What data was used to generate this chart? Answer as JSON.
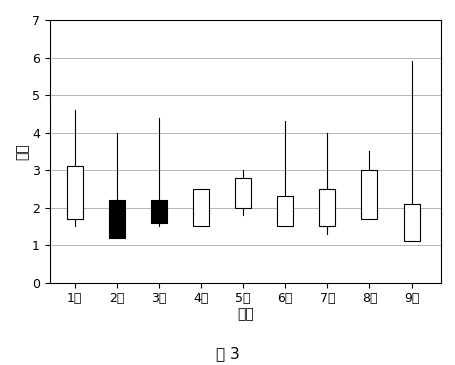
{
  "title": "图 3",
  "xlabel": "时间",
  "ylabel": "震级",
  "ylim": [
    0,
    7
  ],
  "yticks": [
    0,
    1,
    2,
    3,
    4,
    5,
    6,
    7
  ],
  "months": [
    "1月",
    "2月",
    "3月",
    "4月",
    "5月",
    "6月",
    "7月",
    "8月",
    "9月"
  ],
  "candles": [
    {
      "x": 1,
      "open": 3.1,
      "close": 1.7,
      "high": 4.6,
      "low": 1.5,
      "black": false
    },
    {
      "x": 2,
      "open": 1.2,
      "close": 2.2,
      "high": 4.0,
      "low": 1.2,
      "black": true
    },
    {
      "x": 3,
      "open": 1.6,
      "close": 2.2,
      "high": 4.4,
      "low": 1.5,
      "black": true
    },
    {
      "x": 4,
      "open": 1.5,
      "close": 2.5,
      "high": 2.5,
      "low": 1.5,
      "black": false
    },
    {
      "x": 5,
      "open": 2.0,
      "close": 2.8,
      "high": 3.0,
      "low": 1.8,
      "black": false
    },
    {
      "x": 6,
      "open": 1.5,
      "close": 2.3,
      "high": 4.3,
      "low": 1.5,
      "black": false
    },
    {
      "x": 7,
      "open": 1.5,
      "close": 2.5,
      "high": 4.0,
      "low": 1.3,
      "black": false
    },
    {
      "x": 8,
      "open": 1.7,
      "close": 3.0,
      "high": 3.5,
      "low": 1.7,
      "black": false
    },
    {
      "x": 9,
      "open": 1.1,
      "close": 2.1,
      "high": 5.9,
      "low": 1.1,
      "black": false
    }
  ],
  "bar_width": 0.38,
  "bg_color": "#ffffff",
  "grid_color": "#999999",
  "candle_edge_color": "#000000",
  "white_fill": "#ffffff",
  "black_fill": "#000000",
  "line_color": "#000000",
  "font_size_label": 10,
  "font_size_tick": 9,
  "font_size_title": 11
}
